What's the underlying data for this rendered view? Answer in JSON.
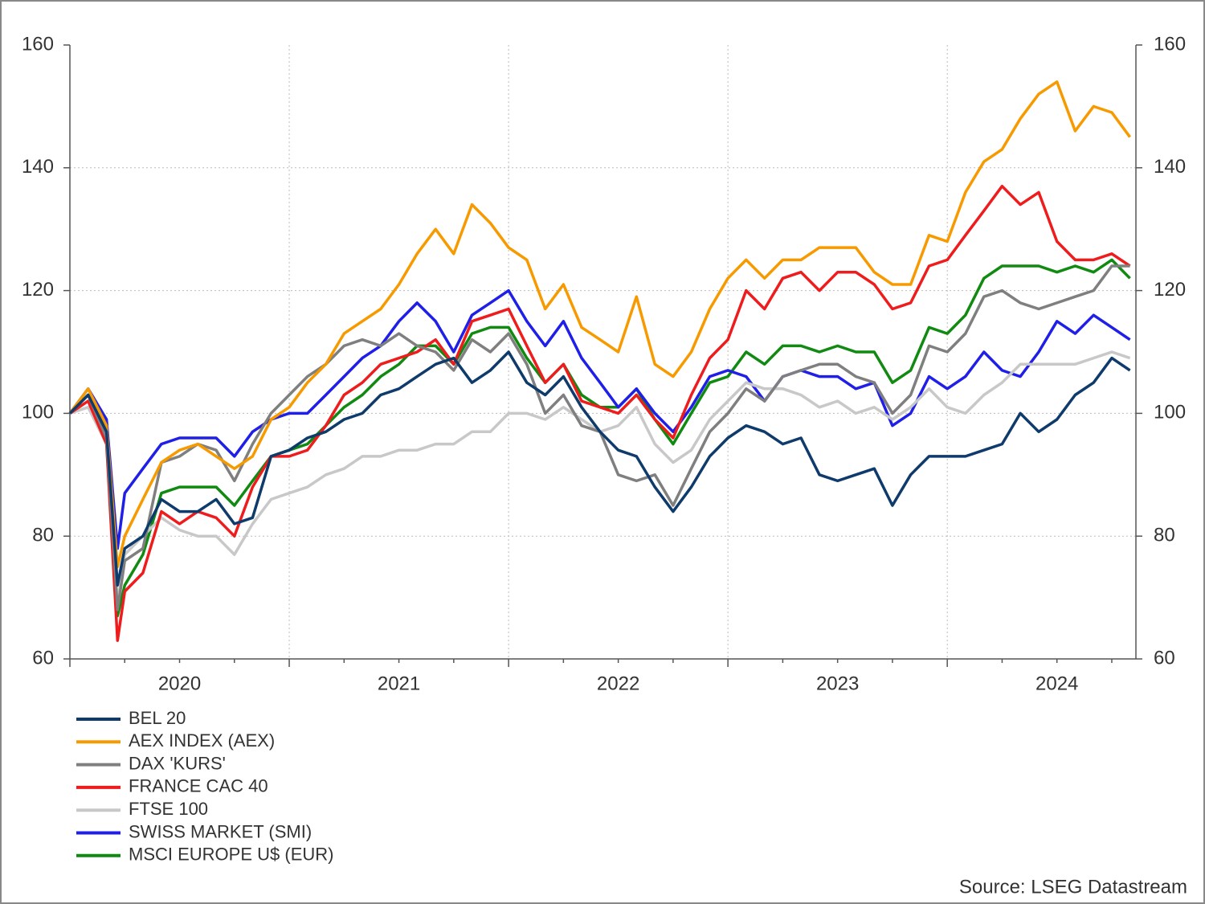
{
  "chart_data": {
    "type": "line",
    "source": "Source: LSEG Datastream",
    "x": [
      2020,
      2020.083,
      2020.167,
      2020.217,
      2020.25,
      2020.333,
      2020.417,
      2020.5,
      2020.583,
      2020.667,
      2020.75,
      2020.833,
      2020.917,
      2021,
      2021.083,
      2021.167,
      2021.25,
      2021.333,
      2021.417,
      2021.5,
      2021.583,
      2021.667,
      2021.75,
      2021.833,
      2021.917,
      2022,
      2022.083,
      2022.167,
      2022.25,
      2022.333,
      2022.417,
      2022.5,
      2022.583,
      2022.667,
      2022.75,
      2022.833,
      2022.917,
      2023,
      2023.083,
      2023.167,
      2023.25,
      2023.333,
      2023.417,
      2023.5,
      2023.583,
      2023.667,
      2023.75,
      2023.833,
      2023.917,
      2024,
      2024.083,
      2024.167,
      2024.25,
      2024.333,
      2024.417,
      2024.5,
      2024.583,
      2024.667,
      2024.75,
      2024.833
    ],
    "xlim": [
      2020,
      2024.86
    ],
    "xticks": [
      {
        "value": 2020.5,
        "label": "2020"
      },
      {
        "value": 2021.5,
        "label": "2021"
      },
      {
        "value": 2022.5,
        "label": "2022"
      },
      {
        "value": 2023.5,
        "label": "2023"
      },
      {
        "value": 2024.5,
        "label": "2024"
      }
    ],
    "ylim": [
      60,
      160
    ],
    "yticks": [
      60,
      80,
      100,
      120,
      140,
      160
    ],
    "grid": true,
    "series": [
      {
        "name": "BEL 20",
        "color": "#0e3b6b",
        "values": [
          100,
          103,
          97,
          72,
          78,
          80,
          86,
          84,
          84,
          86,
          82,
          83,
          93,
          94,
          96,
          97,
          99,
          100,
          103,
          104,
          106,
          108,
          109,
          105,
          107,
          110,
          105,
          103,
          106,
          101,
          97,
          94,
          93,
          88,
          84,
          88,
          93,
          96,
          98,
          97,
          95,
          96,
          90,
          89,
          90,
          91,
          85,
          90,
          93,
          93,
          93,
          94,
          95,
          100,
          97,
          99,
          103,
          105,
          109,
          107
        ]
      },
      {
        "name": "AEX INDEX (AEX)",
        "color": "#f79a00",
        "values": [
          100,
          104,
          98,
          75,
          80,
          86,
          92,
          94,
          95,
          93,
          91,
          93,
          99,
          101,
          105,
          108,
          113,
          115,
          117,
          121,
          126,
          130,
          126,
          134,
          131,
          127,
          125,
          117,
          121,
          114,
          112,
          110,
          119,
          108,
          106,
          110,
          117,
          122,
          125,
          122,
          125,
          125,
          127,
          127,
          127,
          123,
          121,
          121,
          129,
          128,
          136,
          141,
          143,
          148,
          152,
          154,
          146,
          150,
          149,
          145
        ]
      },
      {
        "name": "DAX 'KURS'",
        "color": "#7f7f7f",
        "values": [
          100,
          103,
          96,
          68,
          76,
          78,
          92,
          93,
          95,
          94,
          89,
          95,
          100,
          103,
          106,
          108,
          111,
          112,
          111,
          113,
          111,
          110,
          107,
          112,
          110,
          113,
          108,
          100,
          103,
          98,
          97,
          90,
          89,
          90,
          85,
          91,
          97,
          100,
          104,
          102,
          106,
          107,
          108,
          108,
          106,
          105,
          100,
          103,
          111,
          110,
          113,
          119,
          120,
          118,
          117,
          118,
          119,
          120,
          124,
          124
        ]
      },
      {
        "name": "FRANCE CAC 40",
        "color": "#ee1c1c",
        "values": [
          100,
          102,
          95,
          63,
          71,
          74,
          84,
          82,
          84,
          83,
          80,
          88,
          93,
          93,
          94,
          98,
          103,
          105,
          108,
          109,
          110,
          112,
          108,
          115,
          116,
          117,
          111,
          105,
          108,
          102,
          101,
          100,
          103,
          99,
          96,
          103,
          109,
          112,
          120,
          117,
          122,
          123,
          120,
          123,
          123,
          121,
          117,
          118,
          124,
          125,
          129,
          133,
          137,
          134,
          136,
          128,
          125,
          125,
          126,
          124
        ]
      },
      {
        "name": "FTSE 100",
        "color": "#c8c8c8",
        "values": [
          100,
          101,
          95,
          69,
          77,
          80,
          83,
          81,
          80,
          80,
          77,
          82,
          86,
          87,
          88,
          90,
          91,
          93,
          93,
          94,
          94,
          95,
          95,
          97,
          97,
          100,
          100,
          99,
          101,
          99,
          97,
          98,
          101,
          95,
          92,
          94,
          99,
          102,
          105,
          104,
          104,
          103,
          101,
          102,
          100,
          101,
          99,
          101,
          104,
          101,
          100,
          103,
          105,
          108,
          108,
          108,
          108,
          109,
          110,
          109
        ]
      },
      {
        "name": "SWISS MARKET (SMI)",
        "color": "#1f1fe8",
        "values": [
          100,
          104,
          99,
          78,
          87,
          91,
          95,
          96,
          96,
          96,
          93,
          97,
          99,
          100,
          100,
          103,
          106,
          109,
          111,
          115,
          118,
          115,
          110,
          116,
          118,
          120,
          115,
          111,
          115,
          109,
          105,
          101,
          104,
          100,
          97,
          101,
          106,
          107,
          106,
          102,
          106,
          107,
          106,
          106,
          104,
          105,
          98,
          100,
          106,
          104,
          106,
          110,
          107,
          106,
          110,
          115,
          113,
          116,
          114,
          112
        ]
      },
      {
        "name": "MSCI EUROPE U$ (EUR)",
        "color": "#118a11",
        "values": [
          100,
          103,
          97,
          67,
          72,
          77,
          87,
          88,
          88,
          88,
          85,
          89,
          93,
          94,
          95,
          98,
          101,
          103,
          106,
          108,
          111,
          111,
          108,
          113,
          114,
          114,
          109,
          105,
          108,
          103,
          101,
          101,
          104,
          99,
          95,
          100,
          105,
          106,
          110,
          108,
          111,
          111,
          110,
          111,
          110,
          110,
          105,
          107,
          114,
          113,
          116,
          122,
          124,
          124,
          124,
          123,
          124,
          123,
          125,
          122
        ]
      }
    ]
  }
}
